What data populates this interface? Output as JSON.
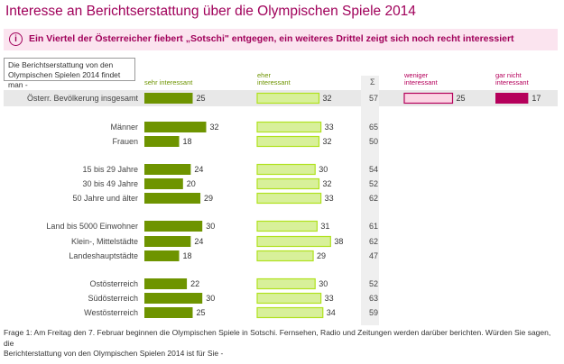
{
  "title": "Interesse an Berichtserstattung über die Olympischen Spiele 2014",
  "banner": {
    "icon": "info-icon",
    "text": "Ein Viertel der Österreicher fiebert „Sotschi\" entgegen, ein weiteres Drittel zeigt sich noch recht interessiert"
  },
  "question_box": {
    "line1": "Die Berichtserstattung von den",
    "line2": "Olympischen Spielen 2014 findet man -"
  },
  "colors": {
    "sehr": "#6e9400",
    "eher": "#b0e21e",
    "eher_fill": "#d8f09a",
    "weniger_fill": "#fbd5e4",
    "garnicht": "#b5005b",
    "label_green": "#6e9400",
    "label_pink": "#b5005b"
  },
  "chart_data": {
    "type": "bar",
    "layout": "horizontal-stacked-panels",
    "columns": [
      {
        "key": "sehr",
        "label": "sehr interessant"
      },
      {
        "key": "eher",
        "label": "eher interessant"
      },
      {
        "key": "sum",
        "label": "Σ"
      },
      {
        "key": "weniger",
        "label": "weniger interessant"
      },
      {
        "key": "garnicht",
        "label": "gar nicht interessant"
      }
    ],
    "rows": [
      {
        "label": "Österr. Bevölkerung insgesamt",
        "sehr": 25,
        "eher": 32,
        "sum": 57,
        "weniger": 25,
        "garnicht": 17
      },
      {
        "label": "Männer",
        "sehr": 32,
        "eher": 33,
        "sum": 65
      },
      {
        "label": "Frauen",
        "sehr": 18,
        "eher": 32,
        "sum": 50
      },
      {
        "label": "15 bis 29 Jahre",
        "sehr": 24,
        "eher": 30,
        "sum": 54
      },
      {
        "label": "30 bis 49 Jahre",
        "sehr": 20,
        "eher": 32,
        "sum": 52
      },
      {
        "label": "50 Jahre und älter",
        "sehr": 29,
        "eher": 33,
        "sum": 62
      },
      {
        "label": "Land bis 5000 Einwohner",
        "sehr": 30,
        "eher": 31,
        "sum": 61
      },
      {
        "label": "Klein-, Mittelstädte",
        "sehr": 24,
        "eher": 38,
        "sum": 62
      },
      {
        "label": "Landeshauptstädte",
        "sehr": 18,
        "eher": 29,
        "sum": 47
      },
      {
        "label": "Ostösterreich",
        "sehr": 22,
        "eher": 30,
        "sum": 52
      },
      {
        "label": "Südösterreich",
        "sehr": 30,
        "eher": 33,
        "sum": 63
      },
      {
        "label": "Westösterreich",
        "sehr": 25,
        "eher": 34,
        "sum": 59
      }
    ]
  },
  "footer": {
    "line1": "Frage 1:  Am Freitag den 7. Februar beginnen die Olympischen Spiele in Sotschi. Fernsehen, Radio und Zeitungen werden darüber berichten. Würden Sie sagen, die",
    "line2": "Berichterstattung von den Olympischen Spielen 2014 ist für Sie -"
  }
}
